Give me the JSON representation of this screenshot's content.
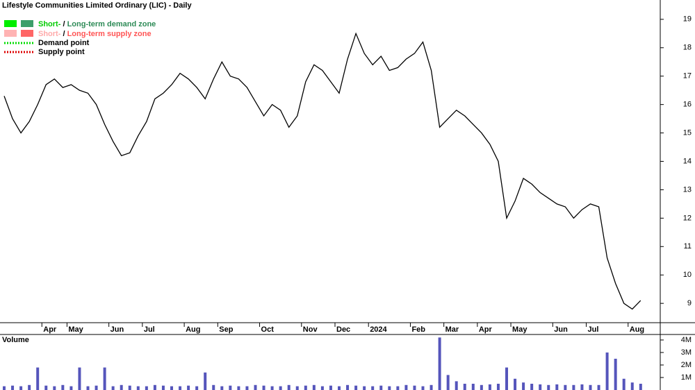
{
  "chart_data": [
    {
      "type": "line",
      "title": "Lifestyle Communities Limited Ordinary (LIC) - Daily",
      "legend": [
        {
          "short": "Short-",
          "sep": " / ",
          "long": "Long-term demand zone"
        },
        {
          "short": "Short-",
          "sep": " / ",
          "long": "Long-term supply zone"
        },
        {
          "text": "Demand point"
        },
        {
          "text": "Supply point"
        }
      ],
      "categories": [
        null,
        null,
        null,
        null,
        null,
        "Apr",
        null,
        null,
        "May",
        null,
        null,
        null,
        null,
        "Jun",
        null,
        null,
        null,
        "Jul",
        null,
        null,
        null,
        null,
        "Aug",
        null,
        null,
        null,
        "Sep",
        null,
        null,
        null,
        null,
        "Oct",
        null,
        null,
        null,
        null,
        "Nov",
        null,
        null,
        null,
        "Dec",
        null,
        null,
        null,
        "2024",
        null,
        null,
        null,
        null,
        "Feb",
        null,
        null,
        null,
        "Mar",
        null,
        null,
        null,
        "Apr",
        null,
        null,
        null,
        "May",
        null,
        null,
        null,
        null,
        "Jun",
        null,
        null,
        null,
        "Jul",
        null,
        null,
        null,
        null,
        "Aug",
        null
      ],
      "series": [
        {
          "color": "#000000",
          "values": [
            16.3,
            15.5,
            15.0,
            15.4,
            16.0,
            16.7,
            16.9,
            16.6,
            16.7,
            16.5,
            16.4,
            16.0,
            15.3,
            14.7,
            14.2,
            14.3,
            14.9,
            15.4,
            16.2,
            16.4,
            16.7,
            17.1,
            16.9,
            16.6,
            16.2,
            16.9,
            17.5,
            17.0,
            16.9,
            16.6,
            16.1,
            15.6,
            16.0,
            15.8,
            15.2,
            15.6,
            16.8,
            17.4,
            17.2,
            16.8,
            16.4,
            17.6,
            18.5,
            17.8,
            17.4,
            17.7,
            17.2,
            17.3,
            17.6,
            17.8,
            18.2,
            17.2,
            15.2,
            15.5,
            15.8,
            15.6,
            15.3,
            15.0,
            14.6,
            14.0,
            12.0,
            12.6,
            13.4,
            13.2,
            12.9,
            12.7,
            12.5,
            12.4,
            12.0,
            12.3,
            12.5,
            12.4,
            10.6,
            9.7,
            9.0,
            8.8,
            9.1
          ]
        }
      ],
      "ylim": [
        8.32,
        19.68
      ],
      "yticks": [
        9,
        10,
        11,
        12,
        13,
        14,
        15,
        16,
        17,
        18,
        19
      ]
    },
    {
      "type": "bar",
      "title": "Volume",
      "color": "#5555bb",
      "values": [
        300000,
        350000,
        300000,
        400000,
        1800000,
        350000,
        300000,
        400000,
        300000,
        1800000,
        300000,
        350000,
        1800000,
        300000,
        400000,
        350000,
        300000,
        300000,
        400000,
        350000,
        300000,
        300000,
        350000,
        300000,
        1400000,
        400000,
        300000,
        350000,
        300000,
        300000,
        400000,
        350000,
        300000,
        300000,
        400000,
        300000,
        350000,
        400000,
        300000,
        350000,
        300000,
        400000,
        350000,
        300000,
        300000,
        350000,
        300000,
        300000,
        400000,
        350000,
        300000,
        400000,
        4200000,
        1200000,
        700000,
        500000,
        500000,
        400000,
        450000,
        500000,
        1800000,
        900000,
        600000,
        500000,
        450000,
        400000,
        450000,
        400000,
        400000,
        450000,
        400000,
        400000,
        3000000,
        2500000,
        900000,
        600000,
        500000
      ],
      "ylim": [
        0,
        4440000
      ],
      "yticks": [
        {
          "value": 1000000,
          "label": "1M"
        },
        {
          "value": 2000000,
          "label": "2M"
        },
        {
          "value": 3000000,
          "label": "3M"
        },
        {
          "value": 4000000,
          "label": "4M"
        }
      ]
    }
  ]
}
